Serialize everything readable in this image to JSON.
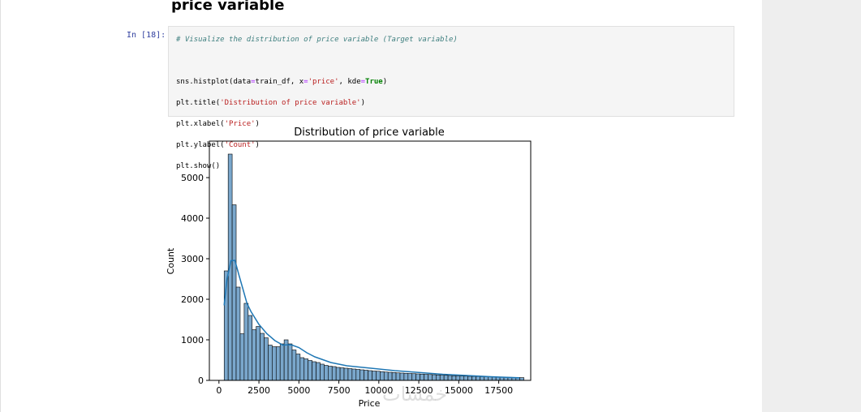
{
  "heading": "price variable",
  "prompt": "In [18]:",
  "code": {
    "comment": "# Visualize the distribution of price variable (Target variable)",
    "line1": {
      "a": "sns.histplot(data",
      "b": "=",
      "c": "train_df, x",
      "d": "=",
      "e": "'price'",
      "f": ", kde",
      "g": "=",
      "h": "True",
      "i": ")"
    },
    "line2": {
      "a": "plt.title(",
      "b": "'Distribution of price variable'",
      "c": ")"
    },
    "line3": {
      "a": "plt.xlabel(",
      "b": "'Price'",
      "c": ")"
    },
    "line4": {
      "a": "plt.ylabel(",
      "b": "'Count'",
      "c": ")"
    },
    "line5": {
      "a": "plt.show()"
    }
  },
  "chart_data": {
    "type": "bar",
    "title": "Distribution of price variable",
    "xlabel": "Price",
    "ylabel": "Count",
    "xlim": [
      -600,
      19500
    ],
    "ylim": [
      0,
      5900
    ],
    "x_ticks": [
      0,
      2500,
      5000,
      7500,
      10000,
      12500,
      15000,
      17500
    ],
    "y_ticks": [
      0,
      1000,
      2000,
      3000,
      4000,
      5000
    ],
    "bin_start": 326,
    "bin_width": 250,
    "values": [
      2700,
      5580,
      4330,
      2300,
      1150,
      1900,
      1600,
      1250,
      1330,
      1160,
      1050,
      870,
      830,
      830,
      900,
      1000,
      900,
      750,
      650,
      560,
      530,
      490,
      460,
      440,
      400,
      370,
      350,
      340,
      320,
      310,
      300,
      290,
      280,
      270,
      260,
      250,
      240,
      230,
      225,
      215,
      205,
      200,
      195,
      185,
      180,
      175,
      170,
      165,
      160,
      155,
      150,
      145,
      140,
      135,
      130,
      125,
      120,
      115,
      110,
      108,
      105,
      100,
      98,
      95,
      92,
      90,
      88,
      85,
      82,
      80,
      78,
      75,
      73,
      70,
      68
    ],
    "kde": {
      "x": [
        326,
        500,
        750,
        1000,
        1250,
        1500,
        1750,
        2000,
        2500,
        3000,
        3500,
        4000,
        4500,
        5000,
        5500,
        6000,
        7000,
        8000,
        9000,
        10000,
        11000,
        12000,
        13000,
        14000,
        15000,
        16000,
        17000,
        18000,
        18800
      ],
      "y": [
        1850,
        2500,
        2950,
        2960,
        2600,
        2250,
        1900,
        1700,
        1380,
        1150,
        980,
        870,
        880,
        810,
        680,
        580,
        440,
        360,
        320,
        280,
        240,
        210,
        180,
        150,
        130,
        110,
        90,
        75,
        65
      ]
    },
    "bar_color": "#7aa7cc",
    "kde_color": "#1f77b4",
    "grid": false
  },
  "watermark": "خمسات"
}
